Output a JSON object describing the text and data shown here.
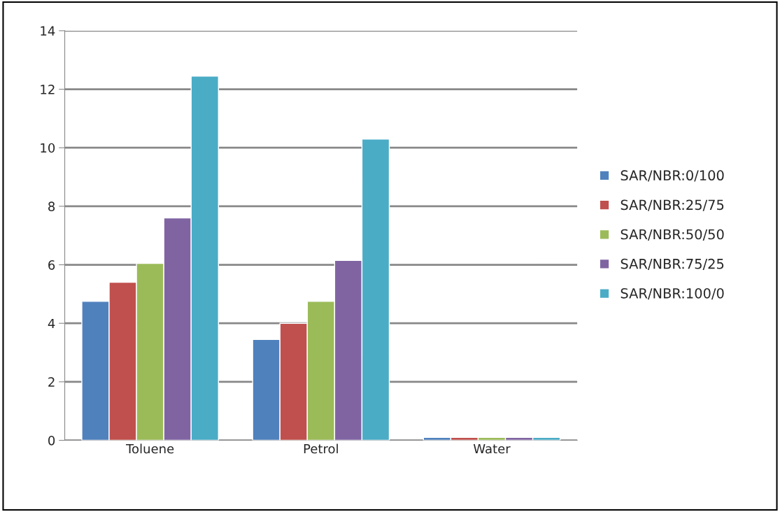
{
  "chart_data": {
    "type": "bar",
    "categories": [
      "Toluene",
      "Petrol",
      "Water"
    ],
    "series": [
      {
        "name": "SAR/NBR:0/100",
        "color": "#4f81bd",
        "values": [
          4.75,
          3.45,
          0.1
        ]
      },
      {
        "name": "SAR/NBR:25/75",
        "color": "#c0504d",
        "values": [
          5.4,
          4.0,
          0.1
        ]
      },
      {
        "name": "SAR/NBR:50/50",
        "color": "#9bbb59",
        "values": [
          6.05,
          4.75,
          0.1
        ]
      },
      {
        "name": "SAR/NBR:75/25",
        "color": "#8064a2",
        "values": [
          7.6,
          6.15,
          0.1
        ]
      },
      {
        "name": "SAR/NBR:100/0",
        "color": "#4bacc6",
        "values": [
          12.45,
          10.3,
          0.1
        ]
      }
    ],
    "ylim": [
      0,
      14
    ],
    "yticks": [
      0,
      2,
      4,
      6,
      8,
      10,
      12,
      14
    ],
    "grid": "y",
    "legend": "right"
  }
}
